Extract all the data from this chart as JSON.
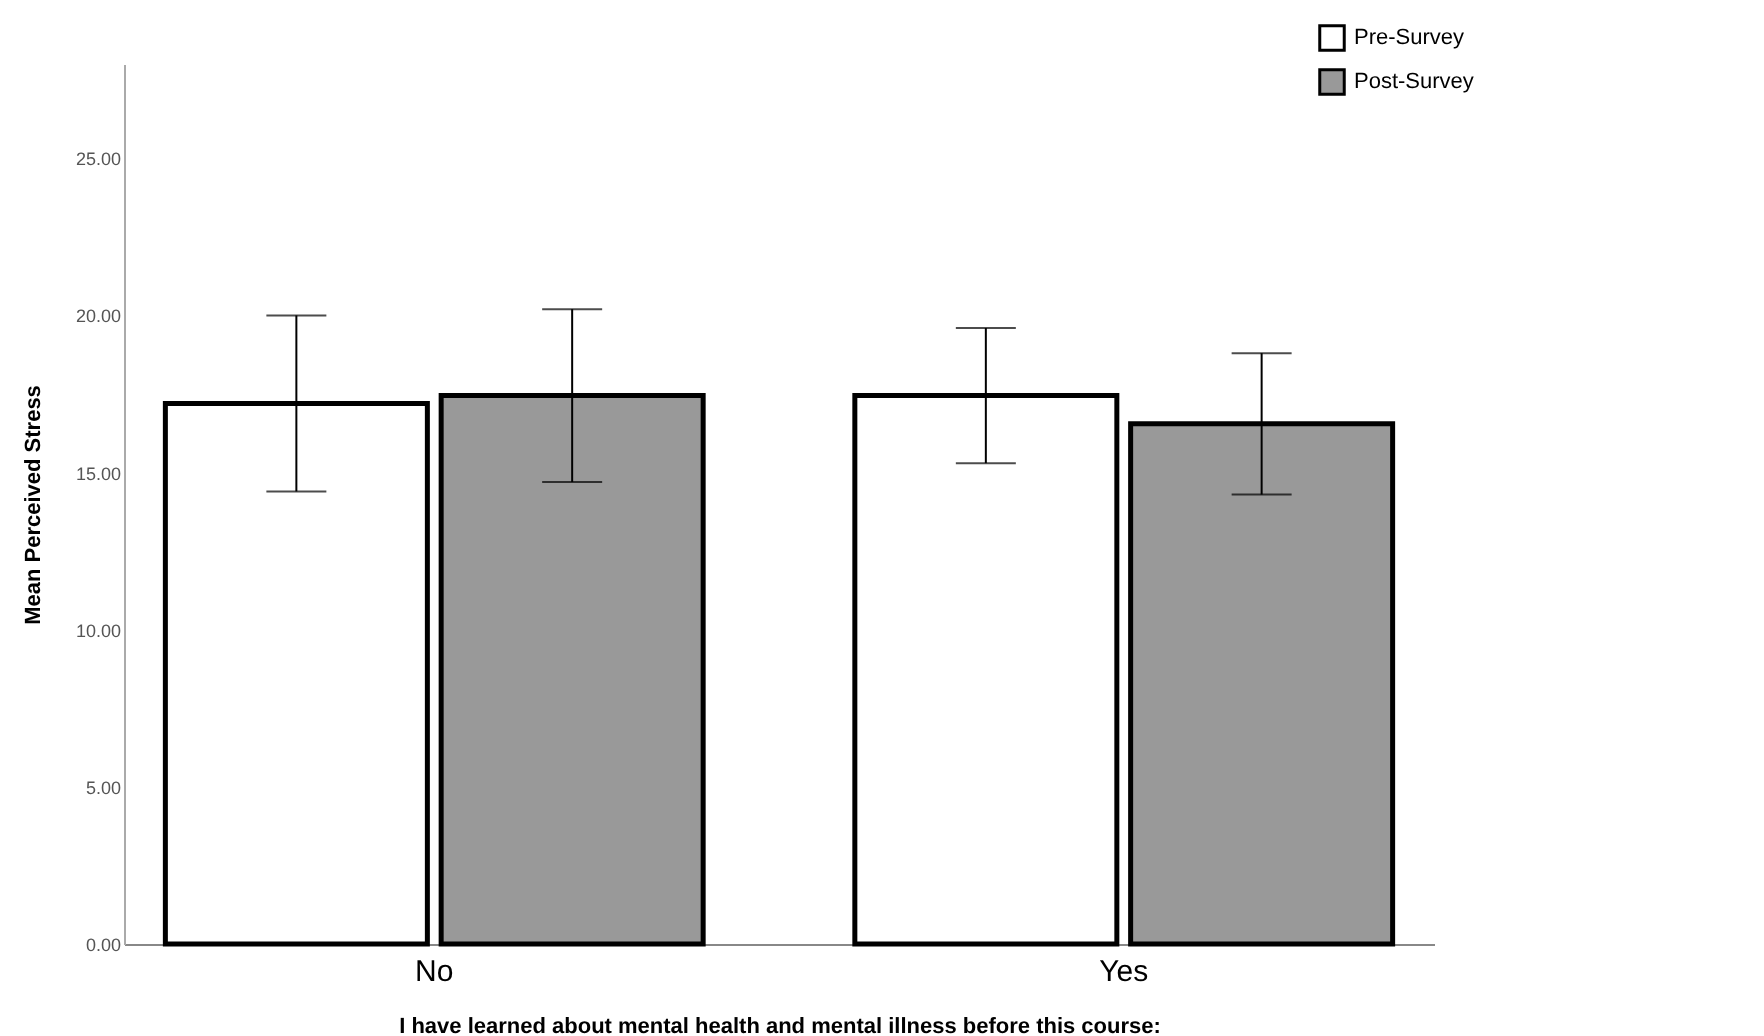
{
  "chart_data": {
    "type": "bar",
    "xlabel": "I have learned about mental health and mental illness before this course:",
    "ylabel": "Mean Perceived Stress",
    "categories": [
      "No",
      "Yes"
    ],
    "series": [
      {
        "name": "Pre-Survey",
        "color": "#ffffff",
        "values": [
          17.2,
          17.45
        ],
        "errors": [
          [
            14.4,
            20.0
          ],
          [
            15.3,
            19.6
          ]
        ]
      },
      {
        "name": "Post-Survey",
        "color": "#999999",
        "values": [
          17.45,
          16.55
        ],
        "errors": [
          [
            14.7,
            20.2
          ],
          [
            14.3,
            18.8
          ]
        ]
      }
    ],
    "ylim": [
      0,
      28
    ],
    "yticks": [
      {
        "value": 0,
        "label": "0.00"
      },
      {
        "value": 5,
        "label": "5.00"
      },
      {
        "value": 10,
        "label": "10.00"
      },
      {
        "value": 15,
        "label": "15.00"
      },
      {
        "value": 20,
        "label": "20.00"
      },
      {
        "value": 25,
        "label": "25.00"
      }
    ],
    "grid": false,
    "legend": "top right"
  }
}
